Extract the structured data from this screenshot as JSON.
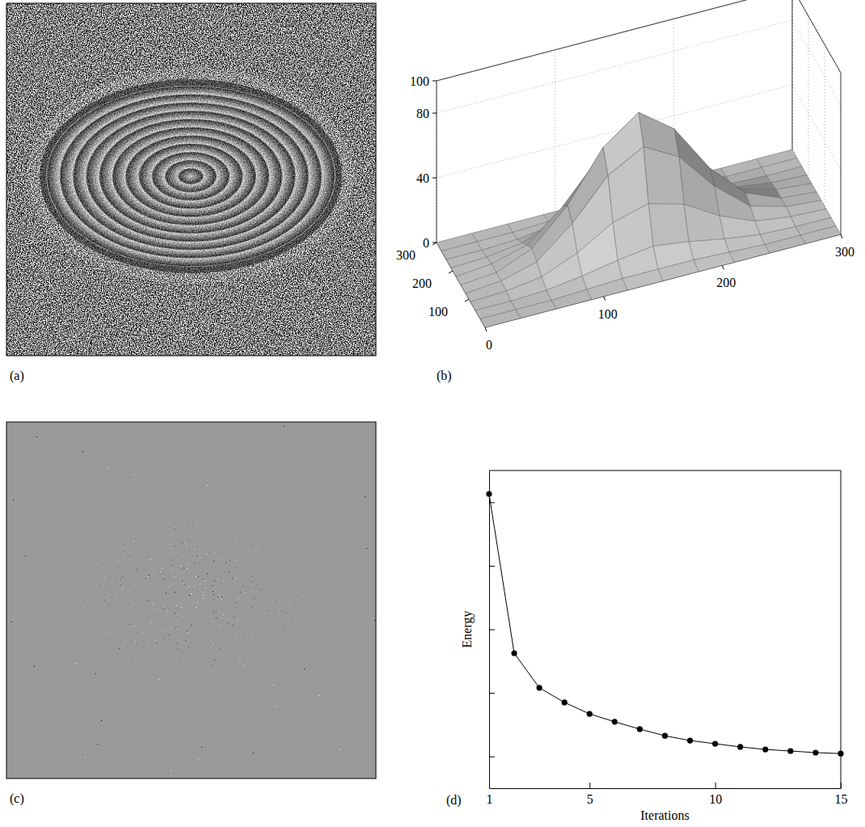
{
  "chart_data": [
    {
      "type": "image",
      "label": "(a)"
    },
    {
      "type": "surface",
      "label": "(b)",
      "x": [
        0,
        30,
        60,
        90,
        120,
        150,
        180,
        210,
        240,
        270,
        300
      ],
      "y": [
        0,
        30,
        60,
        90,
        120,
        150,
        180,
        210,
        240,
        270,
        300
      ],
      "z": [
        [
          0,
          0,
          0,
          0,
          0,
          0,
          0,
          0,
          0,
          0,
          0
        ],
        [
          0,
          0,
          0,
          1,
          2,
          2,
          2,
          1,
          0,
          0,
          0
        ],
        [
          0,
          0,
          1,
          4,
          8,
          11,
          8,
          4,
          1,
          0,
          0
        ],
        [
          0,
          1,
          4,
          13,
          26,
          32,
          26,
          13,
          4,
          1,
          0
        ],
        [
          0,
          2,
          8,
          26,
          50,
          62,
          50,
          26,
          8,
          2,
          0
        ],
        [
          0,
          2,
          11,
          32,
          62,
          78,
          62,
          32,
          11,
          2,
          0
        ],
        [
          0,
          2,
          8,
          26,
          50,
          62,
          50,
          26,
          8,
          2,
          0
        ],
        [
          0,
          1,
          4,
          13,
          26,
          32,
          26,
          13,
          4,
          1,
          0
        ],
        [
          0,
          0,
          1,
          4,
          8,
          11,
          8,
          4,
          1,
          0,
          0
        ],
        [
          0,
          0,
          0,
          1,
          2,
          2,
          2,
          1,
          0,
          0,
          0
        ],
        [
          0,
          0,
          0,
          0,
          0,
          0,
          0,
          0,
          0,
          0,
          0
        ]
      ],
      "xlim": [
        0,
        300
      ],
      "ylim": [
        0,
        300
      ],
      "zlim": [
        0,
        100
      ],
      "xticks": [
        0,
        100,
        200,
        300
      ],
      "yticks": [
        100,
        200,
        300
      ],
      "zticks": [
        0,
        40,
        80,
        100
      ],
      "grid": true,
      "color": "#d0d0d0"
    },
    {
      "type": "image",
      "label": "(c)"
    },
    {
      "type": "line",
      "label": "(d)",
      "x_label": "Iterations",
      "y_label": "Energy",
      "x": [
        1,
        2,
        3,
        4,
        5,
        6,
        7,
        8,
        9,
        10,
        11,
        12,
        13,
        14,
        15
      ],
      "values": [
        92.6,
        42.5,
        31.6,
        27,
        23.4,
        20.9,
        18.6,
        16.5,
        15,
        14,
        13,
        12.2,
        11.7,
        11.2,
        10.9
      ],
      "xlim": [
        1,
        15
      ],
      "ylim": [
        0,
        100
      ],
      "xticks": [
        1,
        5,
        10,
        15
      ],
      "yticks": [
        10,
        30,
        50,
        70,
        90
      ],
      "tick_labels": "x",
      "color": "#000000",
      "marker": "circle",
      "line_style": "solid"
    }
  ]
}
